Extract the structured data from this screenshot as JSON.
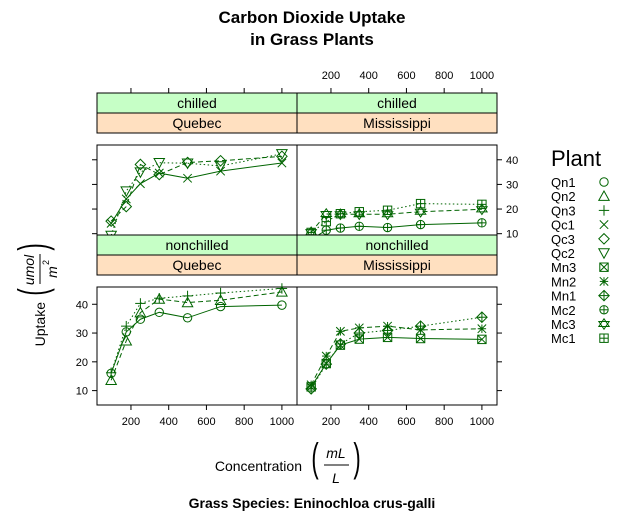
{
  "chart_data": {
    "type": "scatter",
    "title": [
      "Carbon Dioxide Uptake",
      "in Grass Plants"
    ],
    "subtitle": "Grass Species: Eninochloa crus-galli",
    "xlabel": "Concentration",
    "xunit": {
      "num": "mL",
      "den": "L"
    },
    "ylabel": "Uptake",
    "yunit": {
      "num": "umol",
      "den": "m",
      "sup": "2"
    },
    "xlim": [
      20,
      1080
    ],
    "ylim": [
      5,
      46
    ],
    "xticks": [
      200,
      400,
      600,
      800,
      1000
    ],
    "yticks": [
      10,
      20,
      30,
      40
    ],
    "line_color": "#006400",
    "strip_colors": {
      "treatment": "#c6ffc6",
      "type": "#ffe0c0"
    },
    "legend": {
      "title": "Plant",
      "position": "right"
    },
    "x": [
      95,
      175,
      250,
      350,
      500,
      675,
      1000
    ],
    "panels": [
      {
        "treatment": "chilled",
        "type": "Quebec",
        "series": [
          {
            "name": "Qc1",
            "marker": "x",
            "dash": "solid",
            "values": [
              14.2,
              24.1,
              30.3,
              34.6,
              32.5,
              35.4,
              38.7
            ]
          },
          {
            "name": "Qc3",
            "marker": "diamond",
            "dash": "dashed",
            "values": [
              15.1,
              21.0,
              38.1,
              34.0,
              38.9,
              39.6,
              41.4
            ]
          },
          {
            "name": "Qc2",
            "marker": "triangle-down",
            "dash": "dotted",
            "values": [
              9.3,
              27.3,
              35.0,
              38.8,
              38.6,
              37.5,
              42.4
            ]
          }
        ]
      },
      {
        "treatment": "chilled",
        "type": "Mississippi",
        "series": [
          {
            "name": "Mc2",
            "marker": "circle-plus",
            "dash": "solid",
            "values": [
              7.7,
              11.4,
              12.3,
              13.0,
              12.5,
              13.7,
              14.4
            ]
          },
          {
            "name": "Mc3",
            "marker": "star-of-david",
            "dash": "dashed",
            "values": [
              10.6,
              18.0,
              17.9,
              17.9,
              17.9,
              18.9,
              19.9
            ]
          },
          {
            "name": "Mc1",
            "marker": "square-plus",
            "dash": "dotted",
            "values": [
              10.5,
              14.9,
              18.1,
              18.9,
              19.5,
              22.2,
              21.9
            ]
          }
        ]
      },
      {
        "treatment": "nonchilled",
        "type": "Quebec",
        "series": [
          {
            "name": "Qn1",
            "marker": "circle",
            "dash": "solid",
            "values": [
              16.0,
              30.4,
              34.8,
              37.2,
              35.3,
              39.2,
              39.7
            ]
          },
          {
            "name": "Qn2",
            "marker": "triangle",
            "dash": "dashed",
            "values": [
              13.6,
              27.3,
              37.1,
              41.8,
              40.6,
              41.4,
              44.3
            ]
          },
          {
            "name": "Qn3",
            "marker": "plus",
            "dash": "dotted",
            "values": [
              16.2,
              32.4,
              40.3,
              42.1,
              42.9,
              43.9,
              45.5
            ]
          }
        ]
      },
      {
        "treatment": "nonchilled",
        "type": "Mississippi",
        "series": [
          {
            "name": "Mn3",
            "marker": "square-x",
            "dash": "solid",
            "values": [
              11.3,
              19.4,
              25.8,
              27.9,
              28.5,
              28.1,
              27.8
            ]
          },
          {
            "name": "Mn2",
            "marker": "asterisk",
            "dash": "dashed",
            "values": [
              12.0,
              22.0,
              30.6,
              31.8,
              32.4,
              31.1,
              31.5
            ]
          },
          {
            "name": "Mn1",
            "marker": "circle-plus-diamond",
            "dash": "dotted",
            "values": [
              10.6,
              19.2,
              26.2,
              30.0,
              30.9,
              32.4,
              35.5
            ]
          }
        ]
      }
    ],
    "legend_order": [
      {
        "name": "Qn1",
        "marker": "circle"
      },
      {
        "name": "Qn2",
        "marker": "triangle"
      },
      {
        "name": "Qn3",
        "marker": "plus"
      },
      {
        "name": "Qc1",
        "marker": "x"
      },
      {
        "name": "Qc3",
        "marker": "diamond"
      },
      {
        "name": "Qc2",
        "marker": "triangle-down"
      },
      {
        "name": "Mn3",
        "marker": "square-x"
      },
      {
        "name": "Mn2",
        "marker": "asterisk"
      },
      {
        "name": "Mn1",
        "marker": "circle-plus-diamond"
      },
      {
        "name": "Mc2",
        "marker": "circle-plus"
      },
      {
        "name": "Mc3",
        "marker": "star-of-david"
      },
      {
        "name": "Mc1",
        "marker": "square-plus"
      }
    ]
  }
}
